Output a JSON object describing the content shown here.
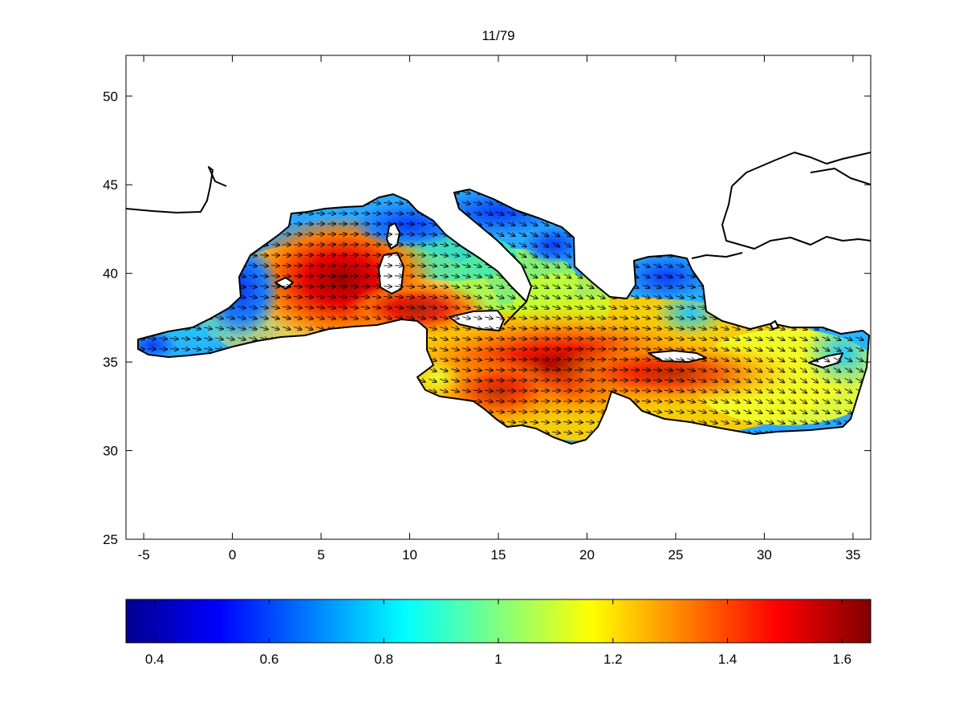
{
  "figure": {
    "title": "11/79"
  },
  "map": {
    "type": "heatmap-with-vectors",
    "region": "Mediterranean Sea",
    "x_ticks": [
      "-5",
      "0",
      "5",
      "10",
      "15",
      "20",
      "25",
      "30",
      "35"
    ],
    "y_ticks": [
      "50",
      "45",
      "40",
      "35",
      "30",
      "25"
    ],
    "x_range": [
      -6,
      36
    ],
    "y_range": [
      25,
      52.3
    ],
    "colormap": "jet",
    "land_color": "#ffffff",
    "coast_color": "#000000"
  },
  "colorbar": {
    "range": [
      0.35,
      1.65
    ],
    "ticks": [
      "0.4",
      "0.6",
      "0.8",
      "1",
      "1.2",
      "1.4",
      "1.6"
    ]
  },
  "chart_data": {
    "type": "heatmap",
    "title": "11/79",
    "xlim": [
      -6,
      36
    ],
    "ylim": [
      25,
      52.3
    ],
    "x_ticks": [
      -5,
      0,
      5,
      10,
      15,
      20,
      25,
      30,
      35
    ],
    "y_ticks": [
      25,
      30,
      35,
      40,
      45,
      50
    ],
    "colorbar_range": [
      0.35,
      1.65
    ],
    "colorbar_ticks": [
      0.4,
      0.6,
      0.8,
      1,
      1.2,
      1.4,
      1.6
    ],
    "maxima": [
      {
        "lon": 6.2,
        "lat": 39.5,
        "value": 1.6
      },
      {
        "lon": 19.0,
        "lat": 34.8,
        "value": 1.6
      }
    ],
    "vector_field": "wind direction arrows mostly pointing south-east over the sea"
  }
}
